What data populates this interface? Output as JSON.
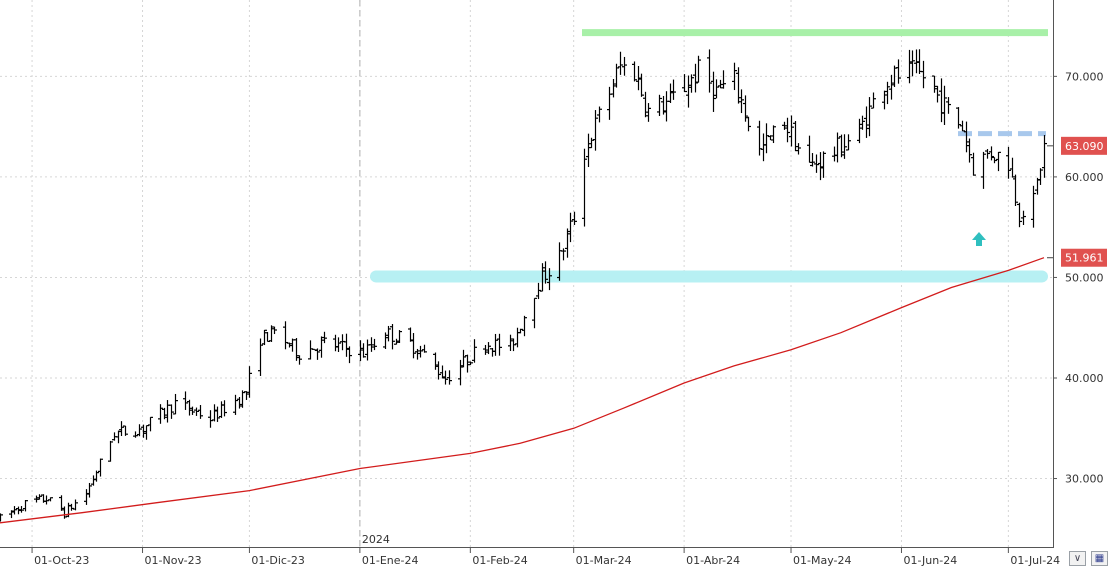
{
  "chart_data": {
    "type": "ohlc",
    "x_tick_labels": [
      "01-Oct-23",
      "01-Nov-23",
      "01-Dic-23",
      "01-Ene-24",
      "01-Feb-24",
      "01-Mar-24",
      "01-Abr-24",
      "01-May-24",
      "01-Jun-24",
      "01-Jul-24"
    ],
    "year_marker": "2024",
    "y_tick_labels": [
      "30.000",
      "40.000",
      "50.000",
      "60.000",
      "70.000"
    ],
    "y_ticks": [
      30,
      40,
      50,
      60,
      70
    ],
    "ylim": [
      21.5,
      76.5
    ],
    "price_badge": {
      "label": "63.090",
      "value": 63.09,
      "color": "#e0514f"
    },
    "ma_badge": {
      "label": "51.961",
      "value": 51.961,
      "color": "#e0514f"
    },
    "ma_color": "#d21c1c",
    "bar_color": "#000000",
    "grid": true,
    "annotations": {
      "resistance_zone": {
        "value": 74.4,
        "color": "#a8f0a8"
      },
      "support_zone": {
        "value": 50.1,
        "color": "#b7f0f3"
      },
      "dashed_level": {
        "value": 64.3,
        "color": "#a8c8ec"
      },
      "arrow_color": "#2fbfbf"
    },
    "moving_average": [
      {
        "date": "2023-09-22",
        "value": 25.6
      },
      {
        "date": "2023-10-15",
        "value": 26.6
      },
      {
        "date": "2023-11-05",
        "value": 27.6
      },
      {
        "date": "2023-12-01",
        "value": 28.8
      },
      {
        "date": "2024-01-01",
        "value": 31.0
      },
      {
        "date": "2024-02-01",
        "value": 32.5
      },
      {
        "date": "2024-02-15",
        "value": 33.5
      },
      {
        "date": "2024-03-01",
        "value": 35.0
      },
      {
        "date": "2024-03-15",
        "value": 37.0
      },
      {
        "date": "2024-04-01",
        "value": 39.5
      },
      {
        "date": "2024-04-15",
        "value": 41.2
      },
      {
        "date": "2024-05-01",
        "value": 42.8
      },
      {
        "date": "2024-05-15",
        "value": 44.5
      },
      {
        "date": "2024-06-01",
        "value": 47.0
      },
      {
        "date": "2024-06-15",
        "value": 49.0
      },
      {
        "date": "2024-07-01",
        "value": 50.7
      },
      {
        "date": "2024-07-11",
        "value": 51.961
      }
    ],
    "price_path": [
      {
        "date": "2023-09-22",
        "value": 26.0
      },
      {
        "date": "2023-09-29",
        "value": 27.5
      },
      {
        "date": "2023-10-05",
        "value": 28.0
      },
      {
        "date": "2023-10-10",
        "value": 26.6
      },
      {
        "date": "2023-10-16",
        "value": 28.5
      },
      {
        "date": "2023-10-20",
        "value": 31.5
      },
      {
        "date": "2023-10-24",
        "value": 34.5
      },
      {
        "date": "2023-11-01",
        "value": 35.0
      },
      {
        "date": "2023-11-10",
        "value": 37.5
      },
      {
        "date": "2023-11-20",
        "value": 36.0
      },
      {
        "date": "2023-11-30",
        "value": 38.5
      },
      {
        "date": "2023-12-04",
        "value": 44.0
      },
      {
        "date": "2023-12-08",
        "value": 44.5
      },
      {
        "date": "2023-12-15",
        "value": 42.5
      },
      {
        "date": "2023-12-22",
        "value": 43.5
      },
      {
        "date": "2024-01-02",
        "value": 42.5
      },
      {
        "date": "2024-01-08",
        "value": 44.5
      },
      {
        "date": "2024-01-12",
        "value": 44.0
      },
      {
        "date": "2024-01-17",
        "value": 43.0
      },
      {
        "date": "2024-01-25",
        "value": 40.0
      },
      {
        "date": "2024-01-30",
        "value": 41.5
      },
      {
        "date": "2024-02-05",
        "value": 43.5
      },
      {
        "date": "2024-02-12",
        "value": 43.0
      },
      {
        "date": "2024-02-20",
        "value": 49.5
      },
      {
        "date": "2024-02-26",
        "value": 52.0
      },
      {
        "date": "2024-03-01",
        "value": 56.0
      },
      {
        "date": "2024-03-04",
        "value": 62.5
      },
      {
        "date": "2024-03-08",
        "value": 66.0
      },
      {
        "date": "2024-03-14",
        "value": 71.0
      },
      {
        "date": "2024-03-18",
        "value": 70.5
      },
      {
        "date": "2024-03-22",
        "value": 66.5
      },
      {
        "date": "2024-03-28",
        "value": 67.5
      },
      {
        "date": "2024-04-05",
        "value": 70.5
      },
      {
        "date": "2024-04-10",
        "value": 68.5
      },
      {
        "date": "2024-04-15",
        "value": 69.5
      },
      {
        "date": "2024-04-22",
        "value": 62.5
      },
      {
        "date": "2024-04-29",
        "value": 65.5
      },
      {
        "date": "2024-05-06",
        "value": 61.0
      },
      {
        "date": "2024-05-13",
        "value": 62.5
      },
      {
        "date": "2024-05-20",
        "value": 64.5
      },
      {
        "date": "2024-05-27",
        "value": 69.5
      },
      {
        "date": "2024-06-03",
        "value": 70.5
      },
      {
        "date": "2024-06-07",
        "value": 70.0
      },
      {
        "date": "2024-06-13",
        "value": 67.0
      },
      {
        "date": "2024-06-18",
        "value": 65.0
      },
      {
        "date": "2024-06-21",
        "value": 61.0
      },
      {
        "date": "2024-06-26",
        "value": 62.5
      },
      {
        "date": "2024-07-01",
        "value": 61.5
      },
      {
        "date": "2024-07-04",
        "value": 56.5
      },
      {
        "date": "2024-07-08",
        "value": 57.5
      },
      {
        "date": "2024-07-11",
        "value": 63.0
      }
    ]
  }
}
